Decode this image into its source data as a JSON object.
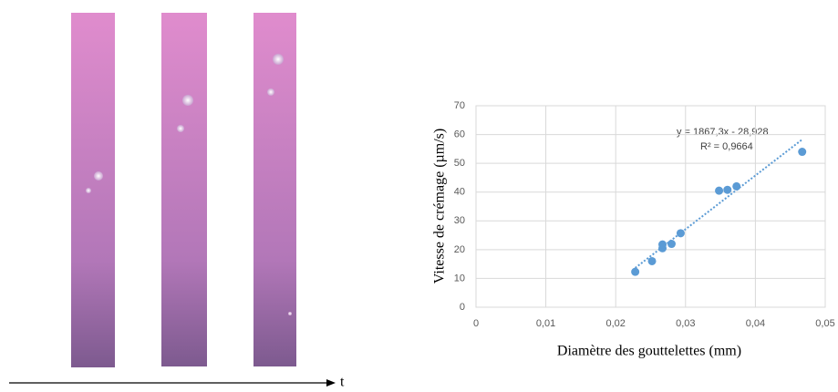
{
  "time_axis_label": "t",
  "chart_data": {
    "type": "scatter",
    "x_label": "Diamètre des gouttelettes (mm)",
    "y_label": "Vitesse de crémage (µm/s)",
    "annotations": [
      "y = 1867,3x - 28,928",
      "R² = 0,9664"
    ],
    "x": [
      0.0228,
      0.0252,
      0.0267,
      0.0267,
      0.028,
      0.0293,
      0.0348,
      0.036,
      0.0373,
      0.0467
    ],
    "values": [
      12.3,
      16,
      20.5,
      21.8,
      22,
      25.7,
      40.5,
      40.8,
      42,
      54
    ],
    "color": "#5b9bd5",
    "trendline": {
      "slope": 1867.3,
      "intercept": -28.928,
      "color": "#5b9bd5"
    },
    "xlim": [
      0,
      0.05
    ],
    "xticks": [
      0,
      {
        "value": 0.01,
        "label": "0,01"
      },
      {
        "value": 0.02,
        "label": "0,02"
      },
      {
        "value": 0.03,
        "label": "0,03"
      },
      {
        "value": 0.04,
        "label": "0,04"
      },
      {
        "value": 0.05,
        "label": "0,05"
      }
    ],
    "ylim": [
      0,
      70
    ],
    "yticks": [
      0,
      10,
      20,
      30,
      40,
      50,
      60,
      70
    ],
    "grid": true
  }
}
